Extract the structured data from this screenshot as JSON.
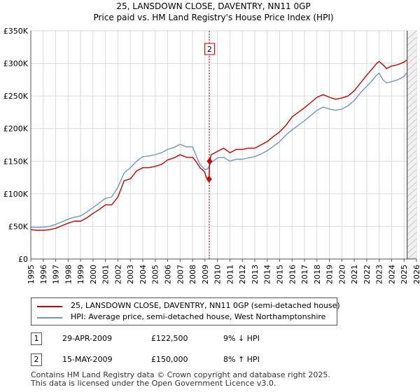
{
  "chart_data": {
    "type": "line",
    "title": "25, LANSDOWN CLOSE, DAVENTRY, NN11 0GP",
    "subtitle": "Price paid vs. HM Land Registry's House Price Index (HPI)",
    "ylim": [
      0,
      350000
    ],
    "xlim": [
      1995,
      2026
    ],
    "y_ticks": [
      {
        "value": 0,
        "label": "£0"
      },
      {
        "value": 50000,
        "label": "£50K"
      },
      {
        "value": 100000,
        "label": "£100K"
      },
      {
        "value": 150000,
        "label": "£150K"
      },
      {
        "value": 200000,
        "label": "£200K"
      },
      {
        "value": 250000,
        "label": "£250K"
      },
      {
        "value": 300000,
        "label": "£300K"
      },
      {
        "value": 350000,
        "label": "£350K"
      }
    ],
    "x_ticks": [
      "1995",
      "1996",
      "1997",
      "1998",
      "1999",
      "2000",
      "2001",
      "2002",
      "2003",
      "2004",
      "2005",
      "2006",
      "2007",
      "2008",
      "2009",
      "2010",
      "2011",
      "2012",
      "2013",
      "2014",
      "2015",
      "2016",
      "2017",
      "2018",
      "2019",
      "2020",
      "2021",
      "2022",
      "2023",
      "2024",
      "2025",
      "2026"
    ],
    "grid": true,
    "series": [
      {
        "name": "25, LANSDOWN CLOSE, DAVENTRY, NN11 0GP (semi-detached house)",
        "color": "#cc0000",
        "x": [
          1995.0,
          1995.5,
          1996.0,
          1996.5,
          1997.0,
          1997.5,
          1998.0,
          1998.5,
          1999.0,
          1999.5,
          2000.0,
          2000.5,
          2001.0,
          2001.5,
          2002.0,
          2002.5,
          2003.0,
          2003.5,
          2004.0,
          2004.5,
          2005.0,
          2005.5,
          2006.0,
          2006.5,
          2007.0,
          2007.5,
          2008.0,
          2008.3,
          2008.6,
          2008.9,
          2009.0,
          2009.1,
          2009.33,
          2009.37,
          2009.5,
          2009.8,
          2010.0,
          2010.5,
          2011.0,
          2011.5,
          2012.0,
          2012.5,
          2013.0,
          2013.5,
          2014.0,
          2014.5,
          2015.0,
          2015.5,
          2016.0,
          2016.5,
          2017.0,
          2017.5,
          2018.0,
          2018.5,
          2019.0,
          2019.5,
          2020.0,
          2020.5,
          2021.0,
          2021.5,
          2022.0,
          2022.5,
          2022.8,
          2023.0,
          2023.3,
          2023.6,
          2024.0,
          2024.5,
          2025.0,
          2025.2
        ],
        "values": [
          45000,
          44000,
          44000,
          45000,
          47000,
          51000,
          55000,
          58000,
          58000,
          63000,
          70000,
          76000,
          83000,
          83000,
          95000,
          120000,
          123000,
          135000,
          140000,
          140000,
          142000,
          145000,
          152000,
          155000,
          160000,
          156000,
          156000,
          149000,
          140000,
          135000,
          132000,
          125000,
          122500,
          150000,
          160000,
          163000,
          165000,
          170000,
          163000,
          168000,
          168000,
          170000,
          170000,
          175000,
          180000,
          188000,
          195000,
          205000,
          218000,
          225000,
          232000,
          240000,
          248000,
          252000,
          248000,
          245000,
          247000,
          250000,
          258000,
          270000,
          282000,
          293000,
          300000,
          303000,
          298000,
          292000,
          296000,
          298000,
          302000,
          305000
        ]
      },
      {
        "name": "HPI: Average price, semi-detached house, West Northamptonshire",
        "color": "#6f96c6",
        "x": [
          1995.0,
          1995.5,
          1996.0,
          1996.5,
          1997.0,
          1997.5,
          1998.0,
          1998.5,
          1999.0,
          1999.5,
          2000.0,
          2000.5,
          2001.0,
          2001.5,
          2002.0,
          2002.5,
          2003.0,
          2003.5,
          2004.0,
          2004.5,
          2005.0,
          2005.5,
          2006.0,
          2006.5,
          2007.0,
          2007.5,
          2008.0,
          2008.3,
          2008.6,
          2008.9,
          2009.0,
          2009.2,
          2009.5,
          2009.8,
          2010.0,
          2010.5,
          2011.0,
          2011.5,
          2012.0,
          2012.5,
          2013.0,
          2013.5,
          2014.0,
          2014.5,
          2015.0,
          2015.5,
          2016.0,
          2016.5,
          2017.0,
          2017.5,
          2018.0,
          2018.5,
          2019.0,
          2019.5,
          2020.0,
          2020.5,
          2021.0,
          2021.5,
          2022.0,
          2022.5,
          2022.8,
          2023.0,
          2023.3,
          2023.6,
          2024.0,
          2024.5,
          2025.0,
          2025.2
        ],
        "values": [
          49000,
          48500,
          49000,
          50000,
          53000,
          57000,
          61000,
          64000,
          66000,
          72000,
          79000,
          86000,
          93000,
          95000,
          110000,
          132000,
          140000,
          150000,
          157000,
          158000,
          160000,
          163000,
          168000,
          171000,
          176000,
          172000,
          172000,
          158000,
          145000,
          139000,
          137000,
          138000,
          148000,
          152000,
          155000,
          156000,
          150000,
          153000,
          153000,
          155000,
          157000,
          161000,
          166000,
          173000,
          180000,
          190000,
          198000,
          205000,
          212000,
          220000,
          228000,
          233000,
          230000,
          228000,
          230000,
          235000,
          243000,
          255000,
          265000,
          275000,
          282000,
          285000,
          275000,
          270000,
          272000,
          275000,
          280000,
          285000
        ]
      }
    ],
    "annotations": [
      {
        "label": "1",
        "x": 2009.33,
        "value": 122500
      },
      {
        "label": "2",
        "x": 2009.37,
        "value": 150000
      }
    ],
    "highlight_x": [
      2009.33,
      2009.37
    ],
    "future_from": 2025.25,
    "legend_position": "below"
  },
  "legend": {
    "property": "25, LANSDOWN CLOSE, DAVENTRY, NN11 0GP (semi-detached house)",
    "hpi": "HPI: Average price, semi-detached house, West Northamptonshire"
  },
  "transactions": [
    {
      "num": "1",
      "date": "29-APR-2009",
      "price": "£122,500",
      "hpi": "9% ↓ HPI"
    },
    {
      "num": "2",
      "date": "15-MAY-2009",
      "price": "£150,000",
      "hpi": "8% ↑ HPI"
    }
  ],
  "footer": {
    "line1": "Contains HM Land Registry data © Crown copyright and database right 2025.",
    "line2": "This data is licensed under the Open Government Licence v3.0."
  }
}
